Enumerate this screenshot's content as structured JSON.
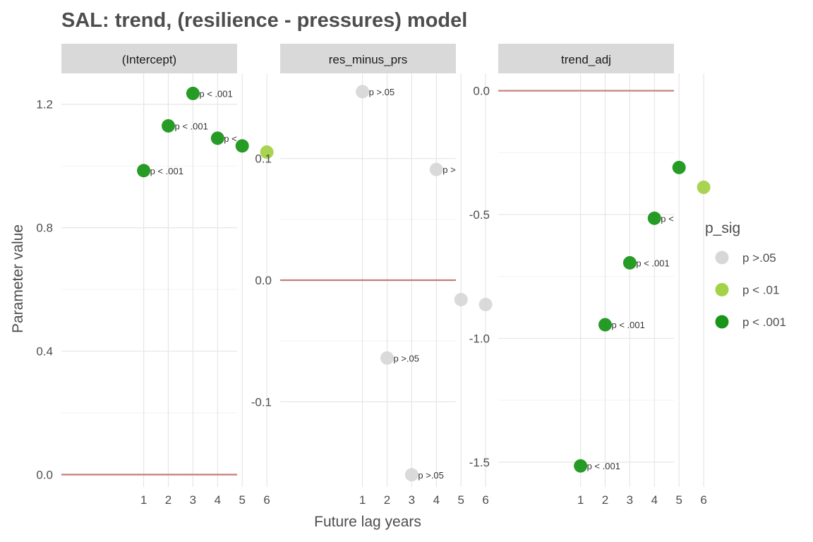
{
  "chart_data": {
    "type": "scatter",
    "title": "SAL: trend, (resilience - pressures) model",
    "xlabel": "Future lag years",
    "ylabel": "Parameter value",
    "x_ticks": [
      1,
      2,
      3,
      4,
      5,
      6
    ],
    "grid": true,
    "reference_line": 0,
    "reference_color": "#c87b7b",
    "legend": {
      "title": "p_sig",
      "placement": "right",
      "items": [
        {
          "label": "p >.05",
          "color": "#d3d3d3"
        },
        {
          "label": "p < .01",
          "color": "#9acd32"
        },
        {
          "label": "p < .001",
          "color": "#008b00"
        }
      ]
    },
    "panels": [
      {
        "strip": "(Intercept)",
        "ylim": [
          -0.04,
          1.3
        ],
        "y_ticks": [
          0.0,
          0.4,
          0.8,
          1.2
        ],
        "y_tick_labels": [
          "0.0",
          "0.4",
          "0.8",
          "1.2"
        ],
        "points": [
          {
            "x": 1,
            "y": 0.985,
            "sig": "p < .001"
          },
          {
            "x": 2,
            "y": 1.13,
            "sig": "p < .001"
          },
          {
            "x": 3,
            "y": 1.235,
            "sig": "p < .001"
          },
          {
            "x": 4,
            "y": 1.09,
            "sig": "p < .001"
          },
          {
            "x": 5,
            "y": 1.065,
            "sig": "p < .001"
          },
          {
            "x": 6,
            "y": 1.045,
            "sig": "p < .01"
          }
        ]
      },
      {
        "strip": "res_minus_prs",
        "ylim": [
          -0.17,
          0.17
        ],
        "y_ticks": [
          -0.1,
          0.0,
          0.1
        ],
        "y_tick_labels": [
          "-0.1",
          "0.0",
          "0.1"
        ],
        "points": [
          {
            "x": 1,
            "y": 0.155,
            "sig": "p >.05"
          },
          {
            "x": 2,
            "y": -0.064,
            "sig": "p >.05"
          },
          {
            "x": 3,
            "y": -0.16,
            "sig": "p >.05"
          },
          {
            "x": 4,
            "y": 0.091,
            "sig": "p >.05"
          },
          {
            "x": 5,
            "y": -0.016,
            "sig": "p >.05"
          },
          {
            "x": 6,
            "y": -0.02,
            "sig": "p >.05"
          }
        ]
      },
      {
        "strip": "trend_adj",
        "ylim": [
          -1.6,
          0.07
        ],
        "y_ticks": [
          -1.5,
          -1.0,
          -0.5,
          0.0
        ],
        "y_tick_labels": [
          "-1.5",
          "-1.0",
          "-0.5",
          "0.0"
        ],
        "points": [
          {
            "x": 1,
            "y": -1.515,
            "sig": "p < .001"
          },
          {
            "x": 2,
            "y": -0.945,
            "sig": "p < .001"
          },
          {
            "x": 3,
            "y": -0.695,
            "sig": "p < .001"
          },
          {
            "x": 4,
            "y": -0.515,
            "sig": "p < .001"
          },
          {
            "x": 5,
            "y": -0.31,
            "sig": "p < .001"
          },
          {
            "x": 6,
            "y": -0.39,
            "sig": "p < .01"
          }
        ]
      }
    ]
  }
}
